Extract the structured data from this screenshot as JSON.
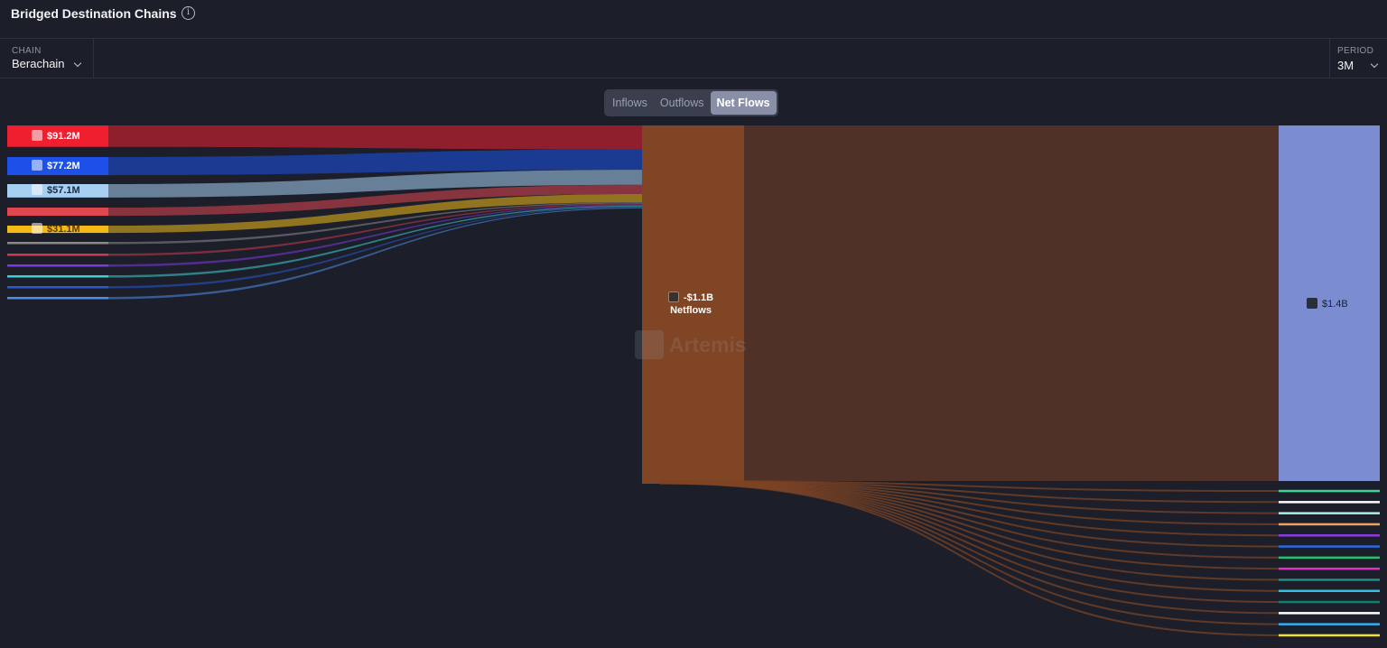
{
  "header": {
    "title": "Bridged Destination Chains",
    "info_icon": "info-icon"
  },
  "filters": {
    "chain": {
      "label": "CHAIN",
      "value": "Berachain"
    },
    "period": {
      "label": "PERIOD",
      "value": "3M"
    }
  },
  "tabs": [
    {
      "label": "Inflows",
      "active": false
    },
    {
      "label": "Outflows",
      "active": false
    },
    {
      "label": "Net Flows",
      "active": true
    }
  ],
  "watermark": "Artemis",
  "chart_data": {
    "type": "sankey",
    "center_node": {
      "value_label": "-$1.1B",
      "name": "Netflows",
      "color": "#7f4524"
    },
    "right_top_node": {
      "value_label": "$1.4B",
      "color": "#7b8cd0"
    },
    "left_sources": [
      {
        "value": 91.2,
        "value_label": "$91.2M",
        "color": "#ef1f2f"
      },
      {
        "value": 77.2,
        "value_label": "$77.2M",
        "color": "#1c50e8"
      },
      {
        "value": 57.1,
        "value_label": "$57.1M",
        "color": "#a6cff2"
      },
      {
        "value": 35,
        "value_label": "",
        "color": "#e0464e"
      },
      {
        "value": 31.1,
        "value_label": "$31.1M",
        "color": "#f3ba17"
      },
      {
        "value": 5,
        "value_label": "",
        "color": "#8a8a8a"
      },
      {
        "value": 4,
        "value_label": "",
        "color": "#c93a4c"
      },
      {
        "value": 4,
        "value_label": "",
        "color": "#7e3ae0"
      },
      {
        "value": 4,
        "value_label": "",
        "color": "#3fd0d0"
      },
      {
        "value": 3,
        "value_label": "",
        "color": "#2a58d0"
      },
      {
        "value": 4,
        "value_label": "",
        "color": "#4f8ee8"
      }
    ],
    "right_small_targets": [
      {
        "color": "#3ad39a"
      },
      {
        "color": "#ffffff"
      },
      {
        "color": "#a7f0e8"
      },
      {
        "color": "#f0a060"
      },
      {
        "color": "#8a3ae0"
      },
      {
        "color": "#2a6ae0"
      },
      {
        "color": "#22c070"
      },
      {
        "color": "#e030c0"
      },
      {
        "color": "#209080"
      },
      {
        "color": "#30c0e0"
      },
      {
        "color": "#108070"
      },
      {
        "color": "#ffffff"
      },
      {
        "color": "#30b0f0"
      },
      {
        "color": "#f0e030"
      }
    ]
  }
}
